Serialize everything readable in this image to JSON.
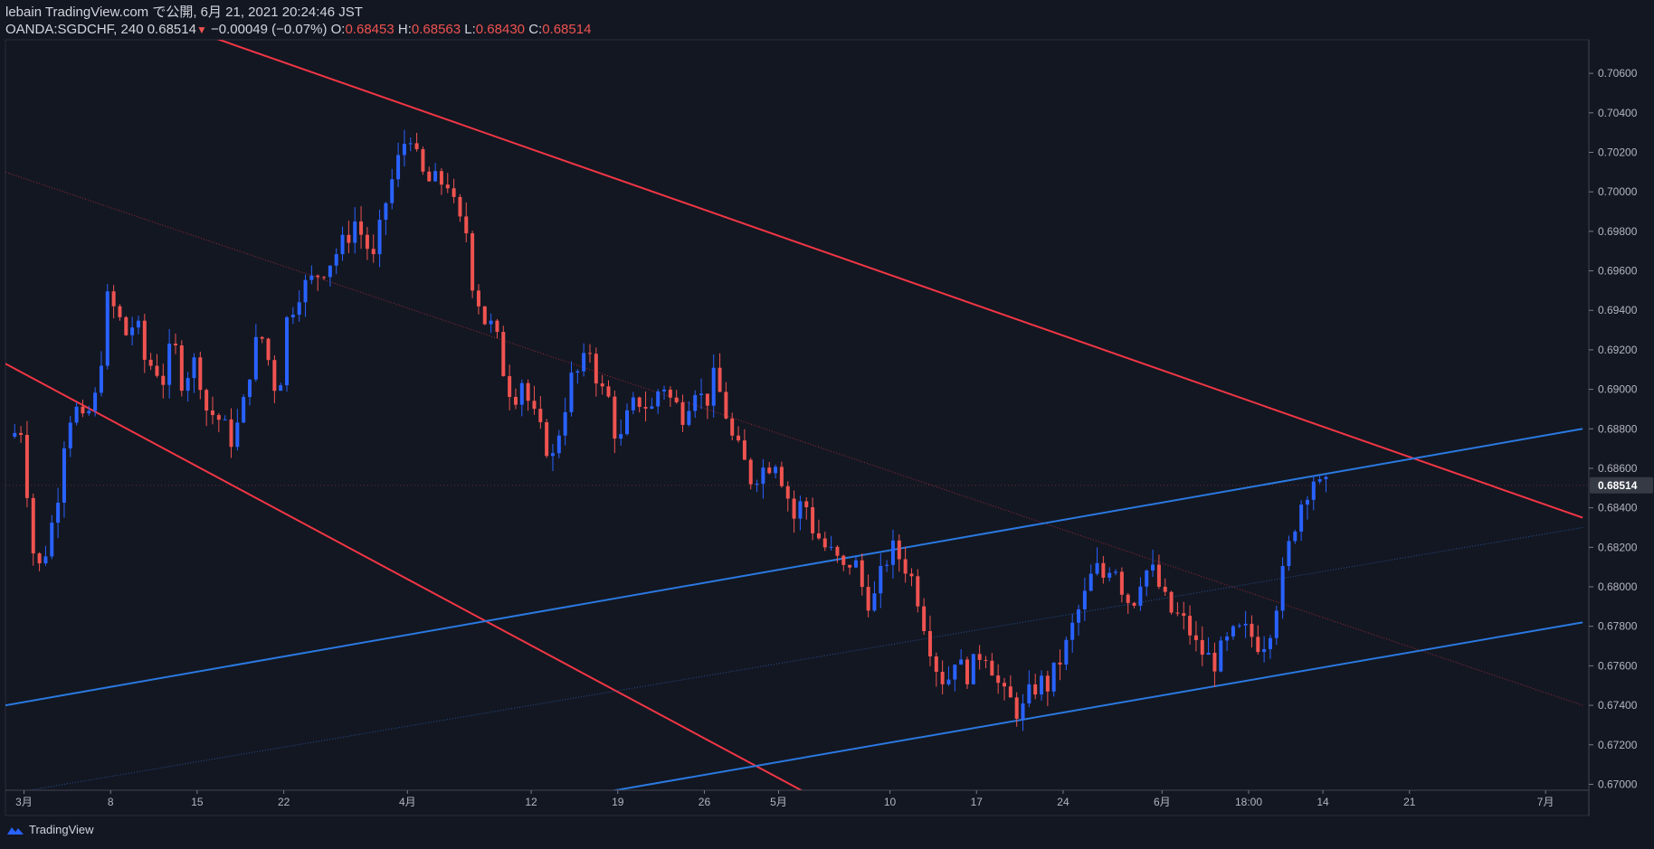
{
  "header": {
    "publisher": "lebain TradingView.com で公開, 6月 21, 2021 20:24:46 JST",
    "symbol": "OANDA:SGDCHF, 240",
    "last": "0.68514",
    "change": "−0.00049 (−0.07%)",
    "o_label": "O:",
    "o_value": "0.68453",
    "h_label": "H:",
    "h_value": "0.68563",
    "l_label": "L:",
    "l_value": "0.68430",
    "c_label": "C:",
    "c_value": "0.68514"
  },
  "footer": {
    "brand": "TradingView"
  },
  "colors": {
    "background": "#131722",
    "up": "#2962ff",
    "down": "#ef5350",
    "channel_red": "#f23645",
    "channel_blue": "#2a79e0"
  },
  "chart_data": {
    "type": "candlestick",
    "price_axis": {
      "ticks": [
        "0.67000",
        "0.67200",
        "0.67400",
        "0.67600",
        "0.67800",
        "0.68000",
        "0.68200",
        "0.68400",
        "0.68600",
        "0.68800",
        "0.69000",
        "0.69200",
        "0.69400",
        "0.69600",
        "0.69800",
        "0.70000",
        "0.70200",
        "0.70400",
        "0.70600"
      ],
      "last_price_label": "0.68514",
      "ylim": [
        0.6697,
        0.7077
      ]
    },
    "time_axis": {
      "ticks": [
        {
          "label": "3月",
          "day": 1
        },
        {
          "label": "8",
          "day": 8
        },
        {
          "label": "15",
          "day": 15
        },
        {
          "label": "22",
          "day": 22
        },
        {
          "label": "4月",
          "day": 32
        },
        {
          "label": "12",
          "day": 42
        },
        {
          "label": "19",
          "day": 49
        },
        {
          "label": "26",
          "day": 56
        },
        {
          "label": "5月",
          "day": 62
        },
        {
          "label": "10",
          "day": 71
        },
        {
          "label": "17",
          "day": 78
        },
        {
          "label": "24",
          "day": 85
        },
        {
          "label": "6月",
          "day": 93
        },
        {
          "label": "18:00",
          "day": 100
        },
        {
          "label": "14",
          "day": 106
        },
        {
          "label": "21",
          "day": 113
        },
        {
          "label": "7月",
          "day": 124
        }
      ]
    },
    "price_path": [
      [
        0.0,
        0.6876
      ],
      [
        1.0,
        0.688
      ],
      [
        1.5,
        0.685
      ],
      [
        2.0,
        0.6818
      ],
      [
        2.5,
        0.681
      ],
      [
        3.2,
        0.6822
      ],
      [
        4.0,
        0.6848
      ],
      [
        4.6,
        0.688
      ],
      [
        5.3,
        0.6892
      ],
      [
        6.0,
        0.6882
      ],
      [
        7.0,
        0.6895
      ],
      [
        7.5,
        0.6917
      ],
      [
        8.0,
        0.6945
      ],
      [
        8.6,
        0.694
      ],
      [
        9.5,
        0.6928
      ],
      [
        10.3,
        0.6935
      ],
      [
        11.0,
        0.6915
      ],
      [
        12.0,
        0.691
      ],
      [
        12.5,
        0.6905
      ],
      [
        13.3,
        0.6925
      ],
      [
        14.0,
        0.6905
      ],
      [
        15.2,
        0.6915
      ],
      [
        16.0,
        0.689
      ],
      [
        17.0,
        0.6885
      ],
      [
        18.0,
        0.6875
      ],
      [
        18.8,
        0.6885
      ],
      [
        19.5,
        0.691
      ],
      [
        20.3,
        0.693
      ],
      [
        21.0,
        0.6915
      ],
      [
        21.8,
        0.6895
      ],
      [
        22.5,
        0.6935
      ],
      [
        23.5,
        0.695
      ],
      [
        24.5,
        0.6955
      ],
      [
        25.2,
        0.696
      ],
      [
        26.0,
        0.6965
      ],
      [
        27.2,
        0.6975
      ],
      [
        28.0,
        0.6985
      ],
      [
        28.8,
        0.6975
      ],
      [
        29.5,
        0.6965
      ],
      [
        30.5,
        0.6995
      ],
      [
        31.2,
        0.701
      ],
      [
        32.0,
        0.7025
      ],
      [
        32.5,
        0.703
      ],
      [
        33.2,
        0.701
      ],
      [
        34.0,
        0.7005
      ],
      [
        35.5,
        0.7005
      ],
      [
        36.3,
        0.6985
      ],
      [
        37.0,
        0.698
      ],
      [
        37.5,
        0.6955
      ],
      [
        38.5,
        0.6935
      ],
      [
        39.3,
        0.693
      ],
      [
        40.0,
        0.691
      ],
      [
        40.8,
        0.6895
      ],
      [
        41.5,
        0.6905
      ],
      [
        42.2,
        0.689
      ],
      [
        43.2,
        0.6875
      ],
      [
        44.0,
        0.6865
      ],
      [
        44.7,
        0.6885
      ],
      [
        45.5,
        0.6905
      ],
      [
        46.3,
        0.691
      ],
      [
        47.0,
        0.692
      ],
      [
        47.8,
        0.69
      ],
      [
        48.5,
        0.6895
      ],
      [
        49.3,
        0.687
      ],
      [
        50.0,
        0.6885
      ],
      [
        50.8,
        0.6895
      ],
      [
        52.0,
        0.689
      ],
      [
        52.8,
        0.6905
      ],
      [
        53.5,
        0.6895
      ],
      [
        54.5,
        0.6888
      ],
      [
        55.5,
        0.6902
      ],
      [
        56.3,
        0.6892
      ],
      [
        57.0,
        0.6905
      ],
      [
        57.7,
        0.6895
      ],
      [
        58.5,
        0.6875
      ],
      [
        59.3,
        0.6865
      ],
      [
        60.0,
        0.6855
      ],
      [
        61.0,
        0.686
      ],
      [
        62.0,
        0.6865
      ],
      [
        62.8,
        0.685
      ],
      [
        63.5,
        0.6835
      ],
      [
        64.3,
        0.6845
      ],
      [
        65.0,
        0.683
      ],
      [
        66.0,
        0.682
      ],
      [
        66.8,
        0.6815
      ],
      [
        67.5,
        0.6808
      ],
      [
        68.3,
        0.6815
      ],
      [
        69.0,
        0.68
      ],
      [
        69.8,
        0.679
      ],
      [
        70.5,
        0.6805
      ],
      [
        71.3,
        0.682
      ],
      [
        72.0,
        0.6815
      ],
      [
        72.8,
        0.6808
      ],
      [
        73.5,
        0.6795
      ],
      [
        74.3,
        0.6775
      ],
      [
        75.0,
        0.676
      ],
      [
        75.8,
        0.675
      ],
      [
        76.5,
        0.6765
      ],
      [
        77.3,
        0.6755
      ],
      [
        78.0,
        0.676
      ],
      [
        78.8,
        0.677
      ],
      [
        79.5,
        0.676
      ],
      [
        80.3,
        0.6745
      ],
      [
        81.0,
        0.6742
      ],
      [
        81.8,
        0.6735
      ],
      [
        82.5,
        0.6745
      ],
      [
        83.3,
        0.6752
      ],
      [
        84.0,
        0.675
      ],
      [
        84.8,
        0.676
      ],
      [
        85.5,
        0.677
      ],
      [
        86.3,
        0.6785
      ],
      [
        87.0,
        0.6795
      ],
      [
        87.8,
        0.681
      ],
      [
        88.5,
        0.6805
      ],
      [
        89.3,
        0.6815
      ],
      [
        90.0,
        0.68
      ],
      [
        90.8,
        0.679
      ],
      [
        91.5,
        0.6805
      ],
      [
        92.3,
        0.681
      ],
      [
        93.0,
        0.68
      ],
      [
        93.8,
        0.6788
      ],
      [
        94.5,
        0.6785
      ],
      [
        95.3,
        0.678
      ],
      [
        96.0,
        0.677
      ],
      [
        96.8,
        0.6765
      ],
      [
        97.5,
        0.6762
      ],
      [
        98.3,
        0.677
      ],
      [
        99.0,
        0.6775
      ],
      [
        99.8,
        0.6778
      ],
      [
        100.5,
        0.6775
      ],
      [
        101.3,
        0.677
      ],
      [
        102.0,
        0.678
      ],
      [
        102.8,
        0.68
      ],
      [
        103.5,
        0.682
      ],
      [
        104.3,
        0.684
      ],
      [
        105.0,
        0.685
      ],
      [
        105.5,
        0.6855
      ],
      [
        106.0,
        0.685
      ]
    ],
    "trendlines": [
      {
        "color": "red",
        "style": "solid",
        "p1": [
          -0.5,
          0.6913
        ],
        "p2": [
          68.0,
          0.6683
        ]
      },
      {
        "color": "red",
        "style": "solid",
        "p1": [
          -0.5,
          0.7115
        ],
        "p2": [
          127.0,
          0.6835
        ]
      },
      {
        "color": "red",
        "style": "dotted",
        "p1": [
          -0.5,
          0.701
        ],
        "p2": [
          127.0,
          0.674
        ]
      },
      {
        "color": "blue",
        "style": "solid",
        "p1": [
          -0.5,
          0.674
        ],
        "p2": [
          127.0,
          0.688
        ]
      },
      {
        "color": "blue",
        "style": "solid",
        "p1": [
          47.0,
          0.6695
        ],
        "p2": [
          127.0,
          0.6782
        ]
      },
      {
        "color": "blue",
        "style": "dotted",
        "p1": [
          -0.5,
          0.6695
        ],
        "p2": [
          127.0,
          0.683
        ]
      }
    ]
  }
}
